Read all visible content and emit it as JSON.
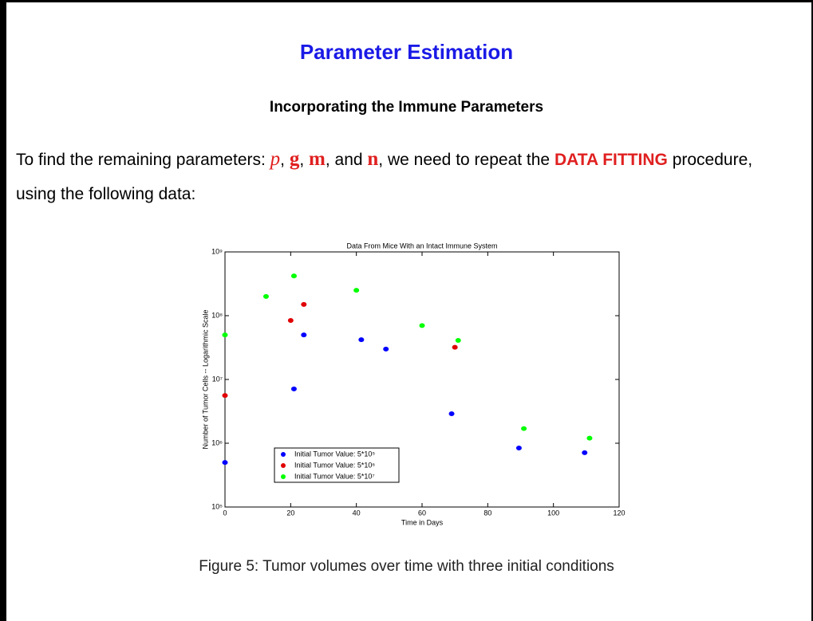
{
  "title": "Parameter Estimation",
  "subtitle": "Incorporating the Immune Parameters",
  "paragraph": [
    "To find the remaining parameters: ",
    "p",
    ", ",
    "g",
    ", ",
    "m",
    ", and ",
    "n",
    ", we need to repeat the ",
    "DATA FITTING",
    " procedure, using the following data:"
  ],
  "caption": "Figure 5: Tumor volumes over time with three initial conditions",
  "chart_data": {
    "type": "scatter",
    "title": "Data From Mice With an Intact Immune System",
    "xlabel": "Time in Days",
    "ylabel": "Number of Tumor Cells -- Logarithmic Scale",
    "xlim": [
      0,
      120
    ],
    "xticks": [
      0,
      20,
      40,
      60,
      80,
      100,
      120
    ],
    "ylim": [
      100000,
      1000000000
    ],
    "ylog": true,
    "yticks": [
      {
        "value": 100000,
        "label": "10⁵"
      },
      {
        "value": 1000000,
        "label": "10⁶"
      },
      {
        "value": 10000000,
        "label": "10⁷"
      },
      {
        "value": 100000000,
        "label": "10⁸"
      },
      {
        "value": 1000000000,
        "label": "10⁹"
      }
    ],
    "legend": "lower left",
    "series": [
      {
        "name": "Initial Tumor Value: 5*10⁵",
        "color": "#0000ff",
        "x": [
          0,
          21,
          24,
          41.5,
          49,
          69,
          89.5,
          109.5
        ],
        "values": [
          500000,
          7100000,
          50000000,
          42000000,
          30000000,
          2900000,
          840000,
          710000
        ]
      },
      {
        "name": "Initial Tumor Value: 5*10⁶",
        "color": "#e00000",
        "x": [
          0,
          20,
          24,
          70
        ],
        "values": [
          5600000,
          84000000,
          150000000,
          32000000
        ]
      },
      {
        "name": "Initial Tumor Value: 5*10⁷",
        "color": "#00ff00",
        "x": [
          0,
          12.5,
          21,
          40,
          60,
          71,
          91,
          111
        ],
        "values": [
          50000000,
          200000000,
          420000000,
          250000000,
          70000000,
          41000000,
          1700000,
          1200000
        ]
      }
    ]
  }
}
